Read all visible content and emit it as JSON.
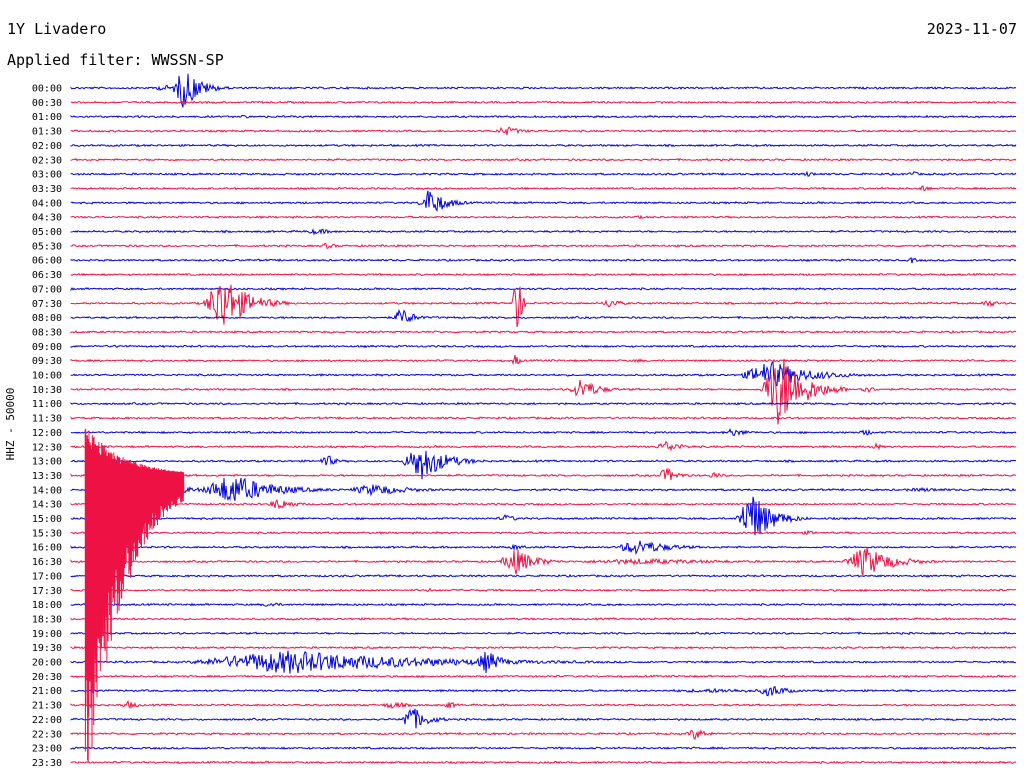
{
  "header": {
    "station": "1Y Livadero",
    "date": "2023-11-07",
    "filter": "Applied filter: WWSSN-SP"
  },
  "chart_data": {
    "type": "line",
    "title": "1Y Livadero",
    "ylabel": "HHZ - 50000",
    "colors": {
      "even": "#0000dd",
      "odd": "#ee1144",
      "text": "#000000"
    },
    "rows": [
      {
        "label": "00:00",
        "events": [
          {
            "t": 0.1,
            "amp": 3,
            "dur": 0.06
          },
          {
            "t": 0.12,
            "amp": 22,
            "dur": 0.04
          }
        ]
      },
      {
        "label": "00:30",
        "events": []
      },
      {
        "label": "01:00",
        "events": [
          {
            "t": 0.18,
            "amp": 2,
            "dur": 0.03
          }
        ]
      },
      {
        "label": "01:30",
        "events": [
          {
            "t": 0.46,
            "amp": 5,
            "dur": 0.04
          }
        ]
      },
      {
        "label": "02:00",
        "events": []
      },
      {
        "label": "02:30",
        "events": [
          {
            "t": 0.34,
            "amp": 1,
            "dur": 0.02
          }
        ]
      },
      {
        "label": "03:00",
        "events": [
          {
            "t": 0.78,
            "amp": 3,
            "dur": 0.02
          },
          {
            "t": 0.89,
            "amp": 3,
            "dur": 0.02
          }
        ]
      },
      {
        "label": "03:30",
        "events": [
          {
            "t": 0.9,
            "amp": 4,
            "dur": 0.02
          }
        ]
      },
      {
        "label": "04:00",
        "events": [
          {
            "t": 0.38,
            "amp": 15,
            "dur": 0.04
          }
        ]
      },
      {
        "label": "04:30",
        "events": [
          {
            "t": 0.6,
            "amp": 2,
            "dur": 0.02
          }
        ]
      },
      {
        "label": "05:00",
        "events": [
          {
            "t": 0.26,
            "amp": 3,
            "dur": 0.05
          }
        ]
      },
      {
        "label": "05:30",
        "events": [
          {
            "t": 0.27,
            "amp": 3,
            "dur": 0.03
          }
        ]
      },
      {
        "label": "06:00",
        "events": [
          {
            "t": 0.89,
            "amp": 4,
            "dur": 0.01
          }
        ]
      },
      {
        "label": "06:30",
        "events": []
      },
      {
        "label": "07:00",
        "events": [
          {
            "t": 0.5,
            "amp": 1,
            "dur": 0.3
          }
        ]
      },
      {
        "label": "07:30",
        "events": [
          {
            "t": 0.16,
            "amp": 30,
            "dur": 0.06
          },
          {
            "t": 0.47,
            "amp": 60,
            "dur": 0.01
          },
          {
            "t": 0.57,
            "amp": 5,
            "dur": 0.03
          },
          {
            "t": 0.97,
            "amp": 4,
            "dur": 0.03
          }
        ]
      },
      {
        "label": "08:00",
        "events": [
          {
            "t": 0.35,
            "amp": 10,
            "dur": 0.03
          }
        ]
      },
      {
        "label": "08:30",
        "events": []
      },
      {
        "label": "09:00",
        "events": [
          {
            "t": 0.05,
            "amp": 2,
            "dur": 0.02
          }
        ]
      },
      {
        "label": "09:30",
        "events": [
          {
            "t": 0.47,
            "amp": 8,
            "dur": 0.01
          },
          {
            "t": 0.6,
            "amp": 2,
            "dur": 0.03
          }
        ]
      },
      {
        "label": "10:00",
        "events": [
          {
            "t": 0.74,
            "amp": 14,
            "dur": 0.1
          }
        ]
      },
      {
        "label": "10:30",
        "events": [
          {
            "t": 0.54,
            "amp": 12,
            "dur": 0.04
          },
          {
            "t": 0.75,
            "amp": 40,
            "dur": 0.06
          },
          {
            "t": 0.84,
            "amp": 4,
            "dur": 0.03
          }
        ]
      },
      {
        "label": "11:00",
        "events": []
      },
      {
        "label": "11:30",
        "events": []
      },
      {
        "label": "12:00",
        "events": [
          {
            "t": 0.7,
            "amp": 4,
            "dur": 0.04
          },
          {
            "t": 0.84,
            "amp": 4,
            "dur": 0.02
          }
        ]
      },
      {
        "label": "12:30",
        "events": [
          {
            "t": 0.63,
            "amp": 6,
            "dur": 0.04
          },
          {
            "t": 0.85,
            "amp": 4,
            "dur": 0.02
          }
        ]
      },
      {
        "label": "13:00",
        "events": [
          {
            "t": 0.27,
            "amp": 8,
            "dur": 0.02
          },
          {
            "t": 0.37,
            "amp": 20,
            "dur": 0.06
          }
        ]
      },
      {
        "label": "13:30",
        "events": [
          {
            "t": 0.63,
            "amp": 8,
            "dur": 0.03
          },
          {
            "t": 0.68,
            "amp": 4,
            "dur": 0.02
          }
        ]
      },
      {
        "label": "14:00",
        "events": [
          {
            "t": 0.07,
            "amp": 14,
            "dur": 0.08
          },
          {
            "t": 0.17,
            "amp": 16,
            "dur": 0.1
          },
          {
            "t": 0.32,
            "amp": 6,
            "dur": 0.09
          },
          {
            "t": 0.9,
            "amp": 2,
            "dur": 0.1
          }
        ]
      },
      {
        "label": "14:30",
        "events": [
          {
            "t": 0.22,
            "amp": 6,
            "dur": 0.04
          }
        ]
      },
      {
        "label": "15:00",
        "events": [
          {
            "t": 0.46,
            "amp": 4,
            "dur": 0.03
          },
          {
            "t": 0.72,
            "amp": 28,
            "dur": 0.05
          }
        ]
      },
      {
        "label": "15:30",
        "events": [
          {
            "t": 0.78,
            "amp": 2,
            "dur": 0.04
          }
        ]
      },
      {
        "label": "16:00",
        "events": [
          {
            "t": 0.47,
            "amp": 3,
            "dur": 0.03
          },
          {
            "t": 0.6,
            "amp": 8,
            "dur": 0.08
          }
        ]
      },
      {
        "label": "16:30",
        "events": [
          {
            "t": 0.47,
            "amp": 14,
            "dur": 0.05
          },
          {
            "t": 0.6,
            "amp": 3,
            "dur": 0.25
          },
          {
            "t": 0.84,
            "amp": 16,
            "dur": 0.07
          }
        ]
      },
      {
        "label": "17:00",
        "events": []
      },
      {
        "label": "17:30",
        "events": [
          {
            "t": 0.38,
            "amp": 2,
            "dur": 0.02
          }
        ]
      },
      {
        "label": "18:00",
        "events": [
          {
            "t": 0.21,
            "amp": 3,
            "dur": 0.03
          },
          {
            "t": 0.57,
            "amp": 2,
            "dur": 0.02
          }
        ]
      },
      {
        "label": "18:30",
        "events": []
      },
      {
        "label": "19:00",
        "events": []
      },
      {
        "label": "19:30",
        "events": []
      },
      {
        "label": "20:00",
        "events": [
          {
            "t": 0.23,
            "amp": 12,
            "dur": 0.33
          },
          {
            "t": 0.44,
            "amp": 12,
            "dur": 0.04
          }
        ]
      },
      {
        "label": "20:30",
        "events": []
      },
      {
        "label": "21:00",
        "events": [
          {
            "t": 0.74,
            "amp": 7,
            "dur": 0.04
          },
          {
            "t": 0.68,
            "amp": 2,
            "dur": 0.25
          }
        ]
      },
      {
        "label": "21:30",
        "events": [
          {
            "t": 0.06,
            "amp": 4,
            "dur": 0.03
          },
          {
            "t": 0.34,
            "amp": 4,
            "dur": 0.04
          },
          {
            "t": 0.4,
            "amp": 4,
            "dur": 0.02
          }
        ]
      },
      {
        "label": "22:00",
        "events": [
          {
            "t": 0.36,
            "amp": 14,
            "dur": 0.04
          }
        ]
      },
      {
        "label": "22:30",
        "events": [
          {
            "t": 0.66,
            "amp": 6,
            "dur": 0.03
          }
        ]
      },
      {
        "label": "23:00",
        "events": []
      },
      {
        "label": "23:30",
        "events": []
      }
    ],
    "big_event": {
      "label": "13:30",
      "t": 0.015,
      "amp_up": 50,
      "amp_down": 330,
      "decay_rows": 5
    }
  }
}
